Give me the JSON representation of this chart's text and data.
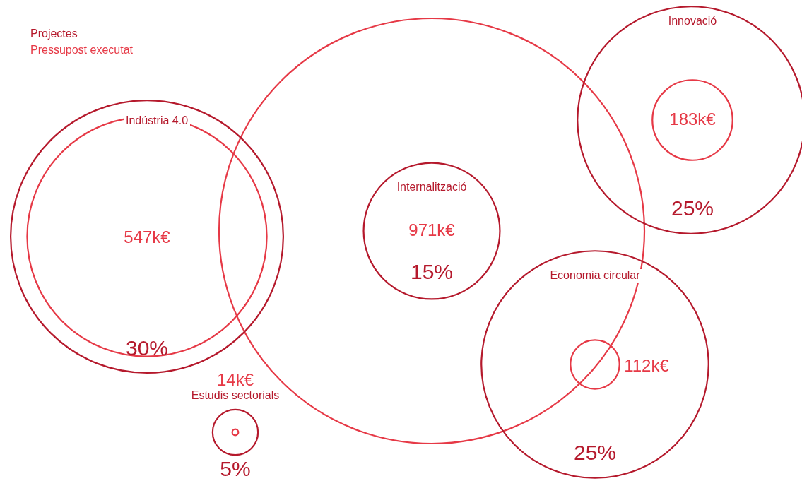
{
  "chart_data": {
    "type": "other",
    "categories": [
      "Indústria 4.0",
      "Internalització",
      "Innovació",
      "Economia circular",
      "Estudis sectorials"
    ],
    "series": [
      {
        "name": "Projectes",
        "color": "#b5192c",
        "values": [
          30,
          15,
          25,
          25,
          5
        ],
        "value_labels": [
          "30%",
          "15%",
          "25%",
          "25%",
          "5%"
        ]
      },
      {
        "name": "Pressupost executat",
        "color": "#e63946",
        "values": [
          547,
          971,
          183,
          112,
          14
        ],
        "value_labels": [
          "547k€",
          "971k€",
          "183k€",
          "112k€",
          "14k€"
        ]
      }
    ]
  }
}
